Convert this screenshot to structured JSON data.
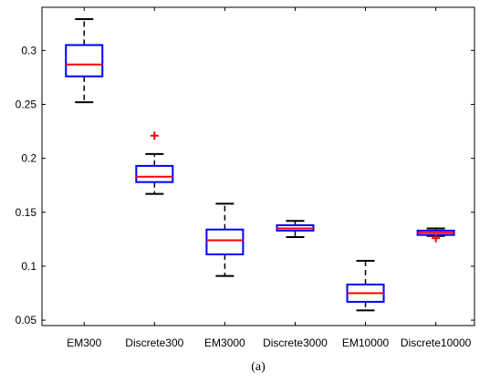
{
  "chart_data": {
    "type": "boxplot",
    "caption": "(a)",
    "ylim": [
      0.045,
      0.34
    ],
    "yticks": [
      0.05,
      0.1,
      0.15,
      0.2,
      0.25,
      0.3
    ],
    "ytick_labels": [
      "0.05",
      "0.1",
      "0.15",
      "0.2",
      "0.25",
      "0.3"
    ],
    "categories": [
      "EM300",
      "Discrete300",
      "EM3000",
      "Discrete3000",
      "EM10000",
      "Discrete10000"
    ],
    "boxes": [
      {
        "name": "EM300",
        "whisker_low": 0.252,
        "q1": 0.276,
        "median": 0.287,
        "q3": 0.305,
        "whisker_high": 0.329,
        "outliers": []
      },
      {
        "name": "Discrete300",
        "whisker_low": 0.167,
        "q1": 0.178,
        "median": 0.183,
        "q3": 0.193,
        "whisker_high": 0.204,
        "outliers": [
          0.221
        ]
      },
      {
        "name": "EM3000",
        "whisker_low": 0.091,
        "q1": 0.111,
        "median": 0.124,
        "q3": 0.134,
        "whisker_high": 0.158,
        "outliers": []
      },
      {
        "name": "Discrete3000",
        "whisker_low": 0.127,
        "q1": 0.133,
        "median": 0.135,
        "q3": 0.138,
        "whisker_high": 0.142,
        "outliers": []
      },
      {
        "name": "EM10000",
        "whisker_low": 0.059,
        "q1": 0.067,
        "median": 0.075,
        "q3": 0.083,
        "whisker_high": 0.105,
        "outliers": []
      },
      {
        "name": "Discrete10000",
        "whisker_low": 0.128,
        "q1": 0.129,
        "median": 0.131,
        "q3": 0.133,
        "whisker_high": 0.135,
        "outliers": [
          0.126
        ]
      }
    ],
    "colors": {
      "box": "#0000ff",
      "median": "#ff0000",
      "whisker": "#000000",
      "outlier": "#ff0000",
      "axes": "#000000"
    }
  }
}
